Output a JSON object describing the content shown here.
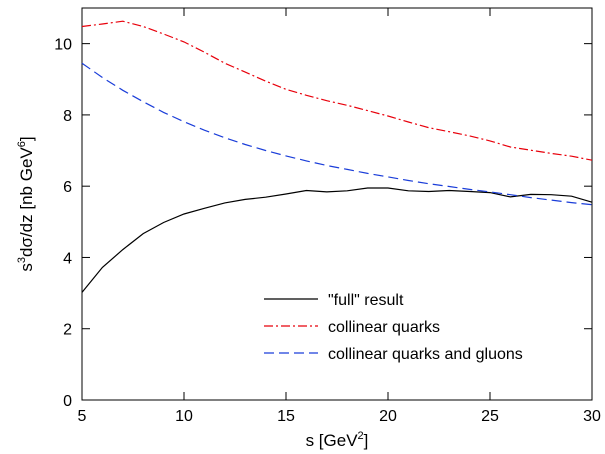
{
  "chart_data": {
    "type": "line",
    "xlabel": {
      "base": "s [GeV",
      "sup": "2",
      "tail": "]"
    },
    "ylabel": {
      "pre": "s",
      "sup1": "3",
      "mid": "dσ/dz [nb GeV",
      "sup2": "6",
      "tail": "]"
    },
    "xlim": [
      5,
      30
    ],
    "ylim": [
      0,
      11
    ],
    "xticks": [
      5,
      10,
      15,
      20,
      25,
      30
    ],
    "yticks": [
      0,
      2,
      4,
      6,
      8,
      10
    ],
    "grid": false,
    "legend_position": "bottom-right",
    "series": [
      {
        "name": "\"full\" result",
        "color": "#000000",
        "dash": "solid",
        "points": [
          [
            5,
            3.02
          ],
          [
            6,
            3.72
          ],
          [
            7,
            4.22
          ],
          [
            8,
            4.67
          ],
          [
            9,
            4.98
          ],
          [
            10,
            5.22
          ],
          [
            11,
            5.38
          ],
          [
            12,
            5.53
          ],
          [
            13,
            5.63
          ],
          [
            14,
            5.69
          ],
          [
            15,
            5.78
          ],
          [
            16,
            5.88
          ],
          [
            17,
            5.84
          ],
          [
            18,
            5.87
          ],
          [
            19,
            5.95
          ],
          [
            20,
            5.95
          ],
          [
            21,
            5.87
          ],
          [
            22,
            5.85
          ],
          [
            23,
            5.88
          ],
          [
            24,
            5.85
          ],
          [
            25,
            5.82
          ],
          [
            26,
            5.7
          ],
          [
            27,
            5.77
          ],
          [
            28,
            5.76
          ],
          [
            29,
            5.72
          ],
          [
            30,
            5.55
          ]
        ]
      },
      {
        "name": "collinear quarks",
        "color": "#e8000b",
        "dash": "dashdot",
        "points": [
          [
            5,
            10.48
          ],
          [
            6,
            10.55
          ],
          [
            7,
            10.63
          ],
          [
            8,
            10.48
          ],
          [
            9,
            10.27
          ],
          [
            10,
            10.05
          ],
          [
            11,
            9.76
          ],
          [
            12,
            9.45
          ],
          [
            13,
            9.2
          ],
          [
            14,
            8.95
          ],
          [
            15,
            8.72
          ],
          [
            16,
            8.55
          ],
          [
            17,
            8.4
          ],
          [
            18,
            8.27
          ],
          [
            19,
            8.12
          ],
          [
            20,
            7.97
          ],
          [
            21,
            7.8
          ],
          [
            22,
            7.64
          ],
          [
            23,
            7.53
          ],
          [
            24,
            7.41
          ],
          [
            25,
            7.27
          ],
          [
            26,
            7.1
          ],
          [
            27,
            7.01
          ],
          [
            28,
            6.92
          ],
          [
            29,
            6.84
          ],
          [
            30,
            6.73
          ]
        ]
      },
      {
        "name": "collinear quarks and gluons",
        "color": "#1a3dd9",
        "dash": "dashed",
        "points": [
          [
            5,
            9.45
          ],
          [
            6,
            9.05
          ],
          [
            7,
            8.69
          ],
          [
            8,
            8.37
          ],
          [
            9,
            8.07
          ],
          [
            10,
            7.81
          ],
          [
            11,
            7.57
          ],
          [
            12,
            7.36
          ],
          [
            13,
            7.17
          ],
          [
            14,
            7.0
          ],
          [
            15,
            6.85
          ],
          [
            16,
            6.71
          ],
          [
            17,
            6.58
          ],
          [
            18,
            6.47
          ],
          [
            19,
            6.36
          ],
          [
            20,
            6.26
          ],
          [
            21,
            6.16
          ],
          [
            22,
            6.07
          ],
          [
            23,
            5.99
          ],
          [
            24,
            5.91
          ],
          [
            25,
            5.84
          ],
          [
            26,
            5.76
          ],
          [
            27,
            5.68
          ],
          [
            28,
            5.61
          ],
          [
            29,
            5.54
          ],
          [
            30,
            5.48
          ]
        ]
      }
    ]
  }
}
